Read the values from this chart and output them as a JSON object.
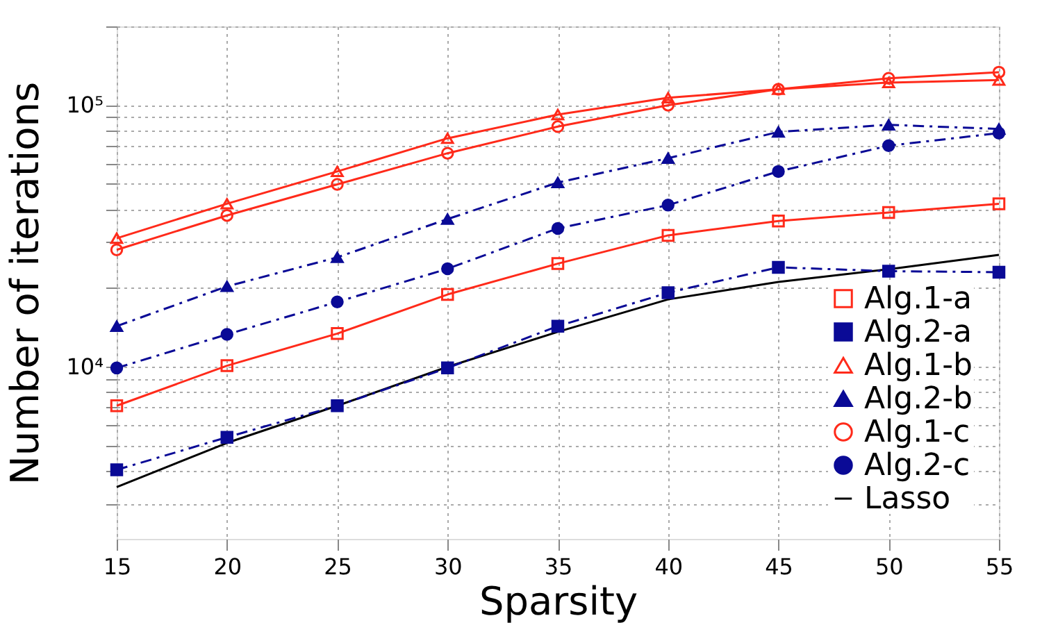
{
  "chart_data": {
    "type": "line",
    "xlabel": "Sparsity",
    "ylabel": "Number of iterations",
    "x": [
      15,
      20,
      25,
      30,
      35,
      40,
      45,
      50,
      55
    ],
    "xlim": [
      15,
      55
    ],
    "xticks": [
      15,
      20,
      25,
      30,
      35,
      40,
      45,
      50,
      55
    ],
    "ylim": [
      2200,
      200000
    ],
    "log": "y",
    "grid": true,
    "legend": "bottom right",
    "yticks": [
      {
        "value": 3000,
        "label": null
      },
      {
        "value": 4000,
        "label": null
      },
      {
        "value": 5000,
        "label": null
      },
      {
        "value": 6000,
        "label": null
      },
      {
        "value": 7000,
        "label": null
      },
      {
        "value": 8000,
        "label": null
      },
      {
        "value": 9000,
        "label": null
      },
      {
        "value": 10000,
        "label": "10⁴"
      },
      {
        "value": 20000,
        "label": null
      },
      {
        "value": 30000,
        "label": null
      },
      {
        "value": 40000,
        "label": null
      },
      {
        "value": 50000,
        "label": null
      },
      {
        "value": 60000,
        "label": null
      },
      {
        "value": 70000,
        "label": null
      },
      {
        "value": 80000,
        "label": null
      },
      {
        "value": 90000,
        "label": null
      },
      {
        "value": 100000,
        "label": "10⁵"
      },
      {
        "value": 200000,
        "label": null
      }
    ],
    "series": [
      {
        "name": "Alg.1-a",
        "color": "#ff2a1a",
        "marker": "square",
        "line_style": "solid",
        "values": [
          7100,
          10100,
          13400,
          18900,
          24800,
          31800,
          36100,
          38900,
          42000
        ]
      },
      {
        "name": "Alg.2-a",
        "color": "#0a0a96",
        "marker": "square",
        "line_style": "dashed",
        "values": [
          4040,
          5380,
          7100,
          9900,
          14300,
          19200,
          24000,
          23200,
          23000
        ]
      },
      {
        "name": "Alg.1-b",
        "color": "#ff2a1a",
        "marker": "triangle",
        "line_style": "solid",
        "values": [
          31000,
          42000,
          55800,
          74700,
          92000,
          106700,
          115000,
          122000,
          124700
        ]
      },
      {
        "name": "Alg.2-b",
        "color": "#0a0a96",
        "marker": "triangle",
        "line_style": "dashed",
        "values": [
          14300,
          20300,
          26200,
          36700,
          50600,
          62700,
          79000,
          84100,
          81100
        ]
      },
      {
        "name": "Alg.1-c",
        "color": "#ff2a1a",
        "marker": "circle",
        "line_style": "solid",
        "values": [
          28000,
          37900,
          49800,
          65500,
          82800,
          100000,
          115000,
          126700,
          133700
        ]
      },
      {
        "name": "Alg.2-c",
        "color": "#0a0a96",
        "marker": "circle",
        "line_style": "dashed",
        "values": [
          9900,
          13300,
          17700,
          23700,
          33800,
          41500,
          55800,
          70000,
          78200
        ]
      },
      {
        "name": "Lasso",
        "color": "#000000",
        "marker": "none",
        "line_style": "solid",
        "values": [
          3470,
          5120,
          7100,
          10000,
          13600,
          18100,
          21100,
          23600,
          26800
        ]
      }
    ]
  }
}
